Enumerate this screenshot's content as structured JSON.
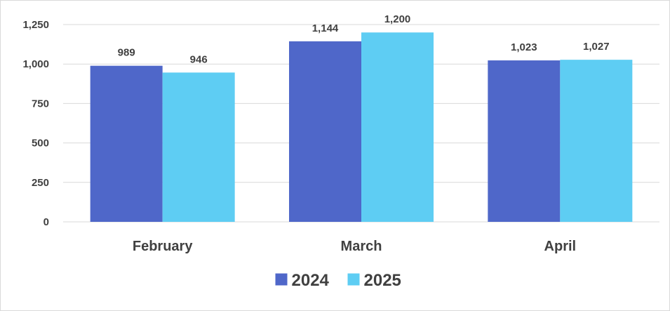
{
  "chart_data": {
    "type": "bar",
    "categories": [
      "February",
      "March",
      "April"
    ],
    "series": [
      {
        "name": "2024",
        "values": [
          989,
          1144,
          1023
        ],
        "value_labels": [
          "989",
          "1,144",
          "1,023"
        ],
        "color": "#4f67c9"
      },
      {
        "name": "2025",
        "values": [
          946,
          1200,
          1027
        ],
        "value_labels": [
          "946",
          "1,200",
          "1,027"
        ],
        "color": "#5ecdf3"
      }
    ],
    "yticks": [
      0,
      250,
      500,
      750,
      1000,
      1250
    ],
    "ytick_labels": [
      "0",
      "250",
      "500",
      "750",
      "1,000",
      "1,250"
    ],
    "ylim": [
      0,
      1250
    ],
    "grid": true,
    "legend_position": "bottom",
    "colors": {
      "grid": "#d9d9d9",
      "text": "#404040",
      "frame": "#d9d9d9"
    }
  }
}
